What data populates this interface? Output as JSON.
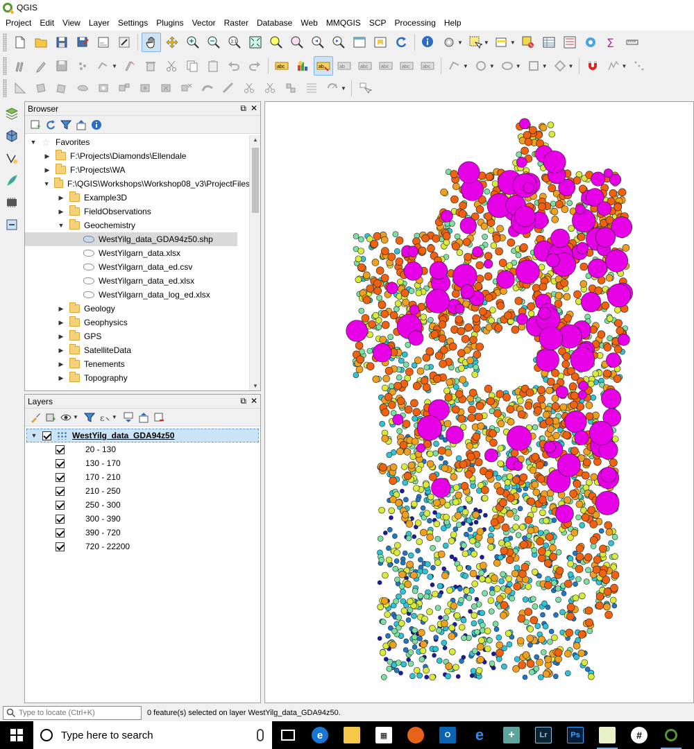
{
  "window": {
    "title": "QGIS"
  },
  "menu": [
    "Project",
    "Edit",
    "View",
    "Layer",
    "Settings",
    "Plugins",
    "Vector",
    "Raster",
    "Database",
    "Web",
    "MMQGIS",
    "SCP",
    "Processing",
    "Help"
  ],
  "browser": {
    "title": "Browser",
    "items": [
      {
        "label": "Favorites",
        "level": 0,
        "arrow": "down",
        "icon": "star"
      },
      {
        "label": "F:\\Projects\\Diamonds\\Ellendale",
        "level": 1,
        "arrow": "right",
        "icon": "folder"
      },
      {
        "label": "F:\\Projects\\WA",
        "level": 1,
        "arrow": "right",
        "icon": "folder"
      },
      {
        "label": "F:\\QGIS\\Workshops\\Workshop08_v3\\ProjectFiles",
        "level": 1,
        "arrow": "down",
        "icon": "folder"
      },
      {
        "label": "Example3D",
        "level": 2,
        "arrow": "right",
        "icon": "folder"
      },
      {
        "label": "FieldObservations",
        "level": 2,
        "arrow": "right",
        "icon": "folder"
      },
      {
        "label": "Geochemistry",
        "level": 2,
        "arrow": "down",
        "icon": "folder"
      },
      {
        "label": "WestYilg_data_GDA94z50.shp",
        "level": 3,
        "arrow": "",
        "icon": "shp",
        "selected": true
      },
      {
        "label": "WestYilgarn_data.xlsx",
        "level": 3,
        "arrow": "",
        "icon": "file"
      },
      {
        "label": "WestYilgarn_data_ed.csv",
        "level": 3,
        "arrow": "",
        "icon": "file"
      },
      {
        "label": "WestYilgarn_data_ed.xlsx",
        "level": 3,
        "arrow": "",
        "icon": "file"
      },
      {
        "label": "WestYilgarn_data_log_ed.xlsx",
        "level": 3,
        "arrow": "",
        "icon": "file"
      },
      {
        "label": "Geology",
        "level": 2,
        "arrow": "right",
        "icon": "folder"
      },
      {
        "label": "Geophysics",
        "level": 2,
        "arrow": "right",
        "icon": "folder"
      },
      {
        "label": "GPS",
        "level": 2,
        "arrow": "right",
        "icon": "folder"
      },
      {
        "label": "SatelliteData",
        "level": 2,
        "arrow": "right",
        "icon": "folder"
      },
      {
        "label": "Tenements",
        "level": 2,
        "arrow": "right",
        "icon": "folder"
      },
      {
        "label": "Topography",
        "level": 2,
        "arrow": "right",
        "icon": "folder"
      }
    ]
  },
  "layers": {
    "title": "Layers",
    "layer_name": "WestYilg_data_GDA94z50",
    "classes": [
      {
        "label": "20 - 130",
        "color": "#1a1aa8",
        "size": 6
      },
      {
        "label": "130 - 170",
        "color": "#1f77c8",
        "size": 7
      },
      {
        "label": "170 - 210",
        "color": "#2ec4d6",
        "size": 8
      },
      {
        "label": "210 - 250",
        "color": "#7be0a0",
        "size": 8
      },
      {
        "label": "250 - 300",
        "color": "#d8ea3a",
        "size": 9
      },
      {
        "label": "300 - 390",
        "color": "#f0a020",
        "size": 10
      },
      {
        "label": "390 - 720",
        "color": "#f0620f",
        "size": 11
      },
      {
        "label": "720 - 22200",
        "color": "#e600e6",
        "size": 12
      }
    ]
  },
  "status": {
    "locator_placeholder": "Type to locate (Ctrl+K)",
    "message": "0 feature(s) selected on layer WestYilg_data_GDA94z50."
  },
  "taskbar": {
    "search_placeholder": "Type here to search",
    "apps": [
      "task-view",
      "edge",
      "file-explorer",
      "store",
      "firefox",
      "outlook",
      "internet-explorer",
      "app-plus",
      "lightroom",
      "photoshop",
      "chart-app",
      "slack",
      "qgis"
    ],
    "lightroom_label": "Lr",
    "photoshop_label": "Ps"
  }
}
